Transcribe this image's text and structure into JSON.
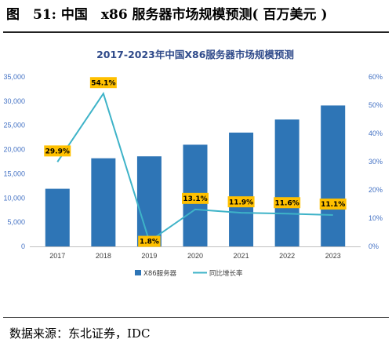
{
  "figure": {
    "title": "图　51: 中国　x86 服务器市场规模预测(  百万美元  )",
    "source": "数据来源：东北证券，IDC"
  },
  "colors": {
    "bar": "#2e75b6",
    "line": "#3eb3c8",
    "label_bg": "#ffc000",
    "title": "#2f4a8a",
    "axis_left": "#4472c4",
    "axis_right": "#4472c4",
    "x_axis": "#404040"
  },
  "chart_data": {
    "type": "bar",
    "title": "2017-2023年中国X86服务器市场规模预测",
    "categories": [
      "2017",
      "2018",
      "2019",
      "2020",
      "2021",
      "2022",
      "2023"
    ],
    "series": [
      {
        "name": "X86服务器",
        "type": "bar",
        "axis": "left",
        "values": [
          11900,
          18200,
          18600,
          21000,
          23500,
          26200,
          29100
        ]
      },
      {
        "name": "同比增长率",
        "type": "line",
        "axis": "right",
        "values": [
          29.9,
          54.1,
          1.8,
          13.1,
          11.9,
          11.6,
          11.1
        ],
        "labels": [
          "29.9%",
          "54.1%",
          "1.8%",
          "13.1%",
          "11.9%",
          "11.6%",
          "11.1%"
        ]
      }
    ],
    "y_left": {
      "min": 0,
      "max": 35000,
      "ticks": [
        0,
        5000,
        10000,
        15000,
        20000,
        25000,
        30000,
        35000
      ],
      "tick_labels": [
        "0",
        "5,000",
        "10,000",
        "15,000",
        "20,000",
        "25,000",
        "30,000",
        "35,000"
      ]
    },
    "y_right": {
      "min": 0,
      "max": 60,
      "ticks": [
        0,
        10,
        20,
        30,
        40,
        50,
        60
      ],
      "tick_labels": [
        "0%",
        "10%",
        "20%",
        "30%",
        "40%",
        "50%",
        "60%"
      ]
    },
    "grid": false,
    "legend_position": "bottom"
  }
}
